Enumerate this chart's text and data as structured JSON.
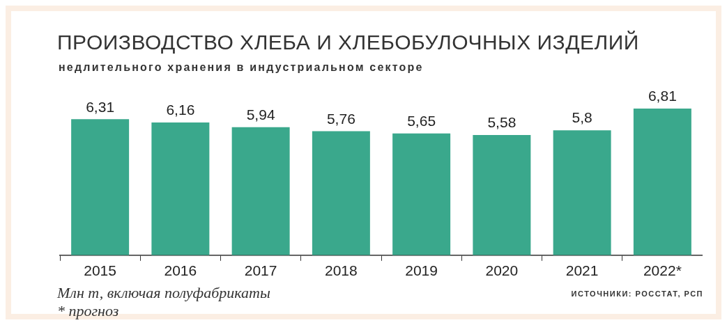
{
  "chart_data": {
    "type": "bar",
    "title": "ПРОИЗВОДСТВО ХЛЕБА И ХЛЕБОБУЛОЧНЫХ ИЗДЕЛИЙ",
    "subtitle": "недлительного хранения в индустриальном секторе",
    "categories": [
      "2015",
      "2016",
      "2017",
      "2018",
      "2019",
      "2020",
      "2021",
      "2022*"
    ],
    "values": [
      6.31,
      6.16,
      5.94,
      5.76,
      5.65,
      5.58,
      5.8,
      6.81
    ],
    "value_labels": [
      "6,31",
      "6,16",
      "5,94",
      "5,76",
      "5,65",
      "5,58",
      "5,8",
      "6,81"
    ],
    "color": "#3aa88c",
    "relative": false,
    "grid": false,
    "legend": false,
    "annotations": [
      "Млн т, включая полуфабрикаты",
      "* прогноз",
      "ИСТОЧНИКИ: РОССТАТ, РСП"
    ]
  }
}
